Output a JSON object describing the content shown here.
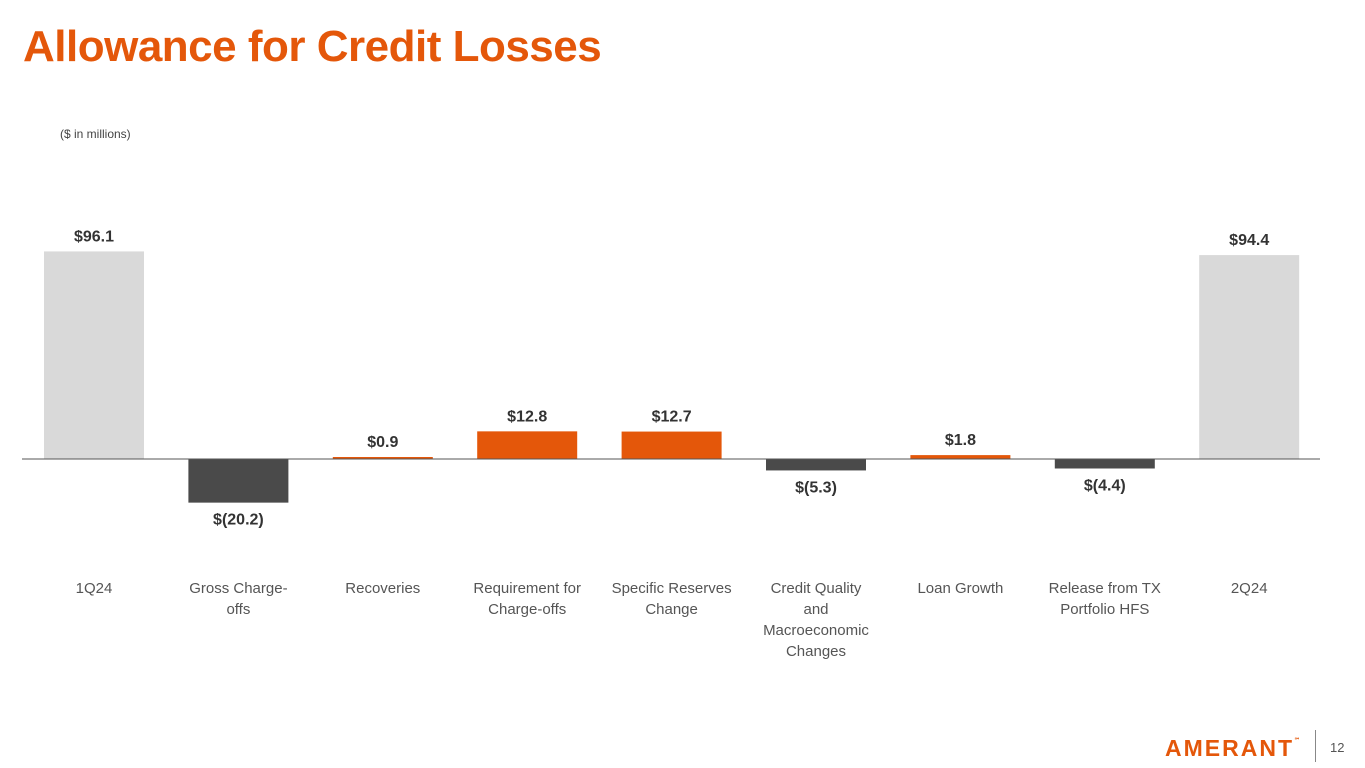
{
  "title": "Allowance for Credit Losses",
  "units_note": "($ in millions)",
  "footer": {
    "logo_text": "AMERANT",
    "logo_mark": "℠",
    "page_number": "12"
  },
  "colors": {
    "accent": "#e4570a",
    "total": "#d9d9d9",
    "negative": "#4a4a4a",
    "baseline": "#555555"
  },
  "chart_data": {
    "type": "bar",
    "subtype": "waterfall",
    "categories": [
      [
        "1Q24"
      ],
      [
        "Gross Charge-",
        "offs"
      ],
      [
        "Recoveries"
      ],
      [
        "Requirement for",
        "Charge-offs"
      ],
      [
        "Specific Reserves",
        "Change"
      ],
      [
        "Credit Quality",
        "and",
        "Macroeconomic",
        "Changes"
      ],
      [
        "Loan Growth"
      ],
      [
        "Release from TX",
        "Portfolio HFS"
      ],
      [
        "2Q24"
      ]
    ],
    "values": [
      96.1,
      -20.2,
      0.9,
      12.8,
      12.7,
      -5.3,
      1.8,
      -4.4,
      94.4
    ],
    "labels": [
      "$96.1",
      "$(20.2)",
      "$0.9",
      "$12.8",
      "$12.7",
      "$(5.3)",
      "$1.8",
      "$(4.4)",
      "$94.4"
    ],
    "kinds": [
      "total",
      "negative",
      "positive",
      "positive",
      "positive",
      "negative",
      "positive",
      "negative",
      "total"
    ],
    "grid": false,
    "legend": "none"
  }
}
